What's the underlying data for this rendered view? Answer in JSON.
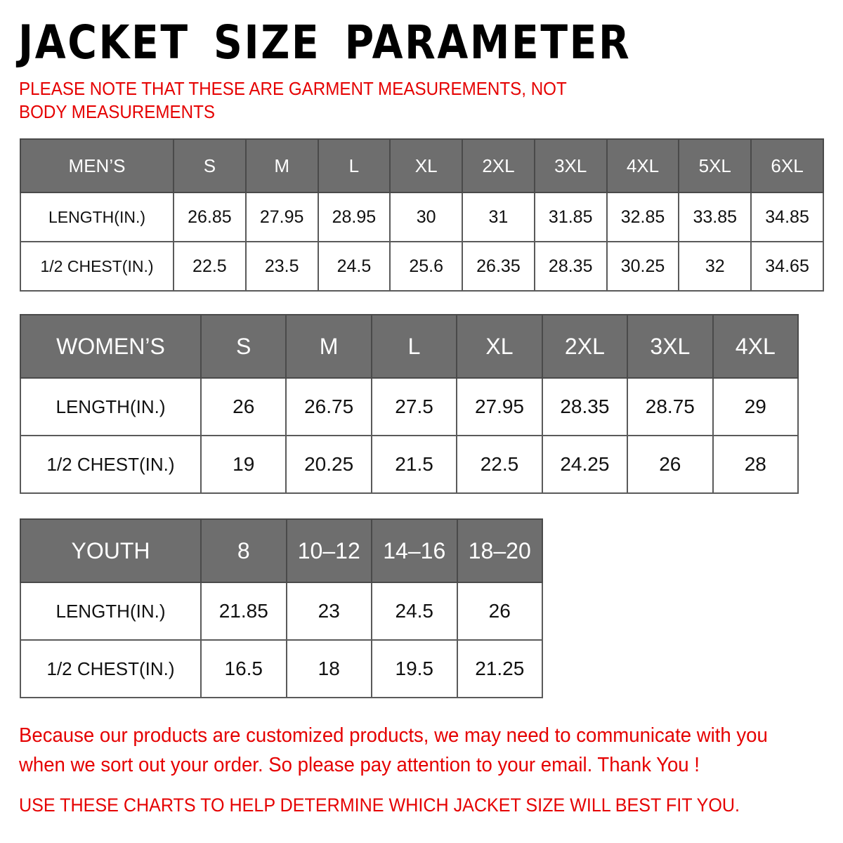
{
  "title": "JACKET SIZE PARAMETER",
  "note": "PLEASE NOTE THAT THESE ARE GARMENT MEASUREMENTS, NOT BODY MEASUREMENTS",
  "colors": {
    "header_bg": "#6e6e6e",
    "note_red": "#e50000"
  },
  "tables": {
    "men": {
      "header": [
        "MEN’S",
        "S",
        "M",
        "L",
        "XL",
        "2XL",
        "3XL",
        "4XL",
        "5XL",
        "6XL"
      ],
      "rows": [
        [
          "LENGTH(IN.)",
          "26.85",
          "27.95",
          "28.95",
          "30",
          "31",
          "31.85",
          "32.85",
          "33.85",
          "34.85"
        ],
        [
          "1/2 CHEST(IN.)",
          "22.5",
          "23.5",
          "24.5",
          "25.6",
          "26.35",
          "28.35",
          "30.25",
          "32",
          "34.65"
        ]
      ]
    },
    "women": {
      "header": [
        "WOMEN’S",
        "S",
        "M",
        "L",
        "XL",
        "2XL",
        "3XL",
        "4XL"
      ],
      "rows": [
        [
          "LENGTH(IN.)",
          "26",
          "26.75",
          "27.5",
          "27.95",
          "28.35",
          "28.75",
          "29"
        ],
        [
          "1/2 CHEST(IN.)",
          "19",
          "20.25",
          "21.5",
          "22.5",
          "24.25",
          "26",
          "28"
        ]
      ]
    },
    "youth": {
      "header": [
        "YOUTH",
        "8",
        "10–12",
        "14–16",
        "18–20"
      ],
      "rows": [
        [
          "LENGTH(IN.)",
          "21.85",
          "23",
          "24.5",
          "26"
        ],
        [
          "1/2 CHEST(IN.)",
          "16.5",
          "18",
          "19.5",
          "21.25"
        ]
      ]
    }
  },
  "footer": {
    "message": "Because our products are customized products, we may need to communicate with you when we sort out your order. So please pay attention to your email. Thank You !",
    "advice": "USE THESE CHARTS TO HELP DETERMINE WHICH JACKET SIZE WILL BEST FIT YOU."
  }
}
